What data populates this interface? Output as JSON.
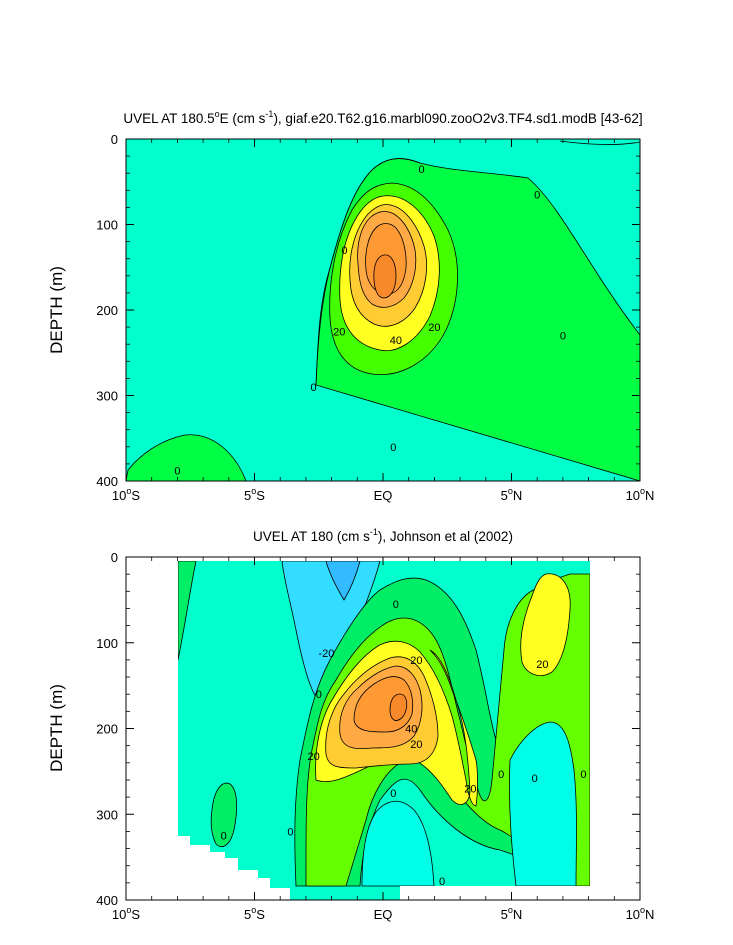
{
  "colors": {
    "neg10_0": "#00ffe6",
    "neg20_neg10": "#33ccff",
    "neg_pale": "#00e6cc",
    "zero_10": "#00ee66",
    "ten_20": "#66ff00",
    "twenty_30": "#ffff33",
    "thirty_40": "#ffcc33",
    "forty_50": "#ffaa44",
    "fifty_60": "#ff9933",
    "zero_tint": "#00f0b0"
  },
  "chart_data": [
    {
      "type": "contour",
      "title": "UVEL AT 180.5°E (cm s⁻¹), giaf.e20.T62.g16.marbl090.zooO2v3.TF4.sd1.modB [43-62]",
      "title_parts": {
        "main": "UVEL AT 180.5",
        "deg": "o",
        "after_deg": "E (cm s",
        "sup": "-1",
        "tail": "), giaf.e20.T62.g16.marbl090.zooO2v3.TF4.sd1.modB [43-62]"
      },
      "xlabel": "",
      "ylabel": "DEPTH (m)",
      "xlim": [
        -10,
        10
      ],
      "ylim": [
        400,
        0
      ],
      "x_ticks": [
        {
          "value": -10,
          "label": "10",
          "sup": "o",
          "suffix": "S"
        },
        {
          "value": -5,
          "label": "5",
          "sup": "o",
          "suffix": "S"
        },
        {
          "value": 0,
          "label": "EQ",
          "sup": "",
          "suffix": ""
        },
        {
          "value": 5,
          "label": "5",
          "sup": "o",
          "suffix": "N"
        },
        {
          "value": 10,
          "label": "10",
          "sup": "o",
          "suffix": "N"
        }
      ],
      "y_ticks": [
        "0",
        "100",
        "200",
        "300",
        "400"
      ],
      "y_tick_values": [
        0,
        100,
        200,
        300,
        400
      ],
      "contour_interval": 10,
      "max_core": {
        "lat": 0.0,
        "depth": 170,
        "value": 60
      },
      "contour_labels": [
        {
          "text": "0",
          "lat": 1.5,
          "depth": 35
        },
        {
          "text": "0",
          "lat": 6.0,
          "depth": 65
        },
        {
          "text": "0",
          "lat": -1.5,
          "depth": 130
        },
        {
          "text": "20",
          "lat": -1.7,
          "depth": 225
        },
        {
          "text": "40",
          "lat": 0.5,
          "depth": 235
        },
        {
          "text": "20",
          "lat": 2.0,
          "depth": 220
        },
        {
          "text": "0",
          "lat": 7.0,
          "depth": 230
        },
        {
          "text": "0",
          "lat": -2.7,
          "depth": 290
        },
        {
          "text": "0",
          "lat": 0.4,
          "depth": 360
        },
        {
          "text": "0",
          "lat": -8.0,
          "depth": 388
        }
      ]
    },
    {
      "type": "contour",
      "title": "UVEL AT 180 (cm s⁻¹), Johnson et al (2002)",
      "title_parts": {
        "main": "UVEL AT 180 (cm s",
        "sup": "-1",
        "tail": "), Johnson et al (2002)"
      },
      "xlabel": "",
      "ylabel": "DEPTH (m)",
      "xlim": [
        -10,
        10
      ],
      "ylim": [
        400,
        0
      ],
      "x_ticks": [
        {
          "value": -10,
          "label": "10",
          "sup": "o",
          "suffix": "S"
        },
        {
          "value": -5,
          "label": "5",
          "sup": "o",
          "suffix": "S"
        },
        {
          "value": 0,
          "label": "EQ",
          "sup": "",
          "suffix": ""
        },
        {
          "value": 5,
          "label": "5",
          "sup": "o",
          "suffix": "N"
        },
        {
          "value": 10,
          "label": "10",
          "sup": "o",
          "suffix": "N"
        }
      ],
      "y_ticks": [
        "0",
        "100",
        "200",
        "300",
        "400"
      ],
      "y_tick_values": [
        0,
        100,
        200,
        300,
        400
      ],
      "data_extent": {
        "lat": [
          -8,
          8
        ],
        "depth": [
          5,
          400
        ]
      },
      "contour_interval": 10,
      "max_core": {
        "lat": 0.5,
        "depth": 170,
        "value": 60
      },
      "contour_labels": [
        {
          "text": "0",
          "lat": 0.5,
          "depth": 55
        },
        {
          "text": "-20",
          "lat": -2.2,
          "depth": 112
        },
        {
          "text": "20",
          "lat": 1.3,
          "depth": 120
        },
        {
          "text": "20",
          "lat": 6.2,
          "depth": 125
        },
        {
          "text": "0",
          "lat": -2.5,
          "depth": 160
        },
        {
          "text": "40",
          "lat": 1.1,
          "depth": 200
        },
        {
          "text": "20",
          "lat": 1.3,
          "depth": 218
        },
        {
          "text": "20",
          "lat": -2.7,
          "depth": 232
        },
        {
          "text": "0",
          "lat": 4.6,
          "depth": 253
        },
        {
          "text": "0",
          "lat": 5.9,
          "depth": 258
        },
        {
          "text": "0",
          "lat": 7.8,
          "depth": 253
        },
        {
          "text": "20",
          "lat": 3.4,
          "depth": 270
        },
        {
          "text": "0",
          "lat": 0.4,
          "depth": 275
        },
        {
          "text": "0",
          "lat": -3.6,
          "depth": 320
        },
        {
          "text": "0",
          "lat": -6.2,
          "depth": 325
        },
        {
          "text": "0",
          "lat": 2.3,
          "depth": 378
        }
      ]
    }
  ]
}
